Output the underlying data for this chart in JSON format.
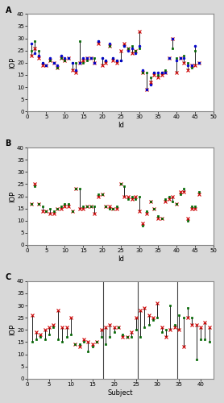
{
  "panel_A": {
    "title": "A",
    "xlabel": "Id",
    "ylabel": "IOP",
    "xlim": [
      0,
      50
    ],
    "ylim": [
      0,
      40
    ],
    "xticks": [
      0,
      5,
      10,
      15,
      20,
      25,
      30,
      35,
      40,
      45,
      50
    ],
    "yticks": [
      0,
      5,
      10,
      15,
      20,
      25,
      30,
      35,
      40
    ],
    "subjects": [
      1,
      2,
      3,
      4,
      5,
      6,
      7,
      8,
      9,
      10,
      11,
      12,
      13,
      14,
      15,
      16,
      17,
      18,
      19,
      20,
      21,
      22,
      23,
      24,
      25,
      26,
      27,
      28,
      29,
      30,
      31,
      32,
      33,
      34,
      35,
      36,
      37,
      38,
      39,
      40,
      41,
      42,
      43,
      44,
      45,
      46
    ],
    "v1": [
      23,
      26,
      22,
      19,
      19,
      21,
      20,
      18,
      22,
      21,
      22,
      17,
      16,
      20,
      21,
      22,
      22,
      20,
      28,
      19,
      20,
      27,
      21,
      20,
      25,
      28,
      26,
      24,
      25,
      33,
      16,
      9,
      12,
      15,
      14,
      15,
      16,
      22,
      30,
      16,
      22,
      20,
      17,
      19,
      19,
      20
    ],
    "v2": [
      25,
      29,
      25,
      20,
      19,
      21,
      20,
      18,
      22,
      21,
      22,
      20,
      20,
      29,
      20,
      21,
      22,
      22,
      29,
      22,
      21,
      27,
      22,
      21,
      21,
      27,
      26,
      27,
      25,
      26,
      16,
      16,
      14,
      16,
      15,
      16,
      17,
      22,
      26,
      22,
      22,
      23,
      20,
      18,
      25,
      20
    ],
    "v3": [
      28,
      24,
      23,
      20,
      19,
      22,
      20,
      19,
      23,
      22,
      22,
      20,
      17,
      20,
      22,
      22,
      22,
      20,
      29,
      22,
      21,
      28,
      22,
      21,
      21,
      27,
      25,
      26,
      24,
      27,
      17,
      9,
      11,
      16,
      16,
      16,
      16,
      22,
      30,
      21,
      22,
      22,
      19,
      19,
      27,
      20
    ]
  },
  "panel_B": {
    "title": "B",
    "xlabel": "Id",
    "ylabel": "IOP",
    "xlim": [
      0,
      50
    ],
    "ylim": [
      0,
      40
    ],
    "xticks": [
      0,
      5,
      10,
      15,
      20,
      25,
      30,
      35,
      40,
      45,
      50
    ],
    "yticks": [
      0,
      5,
      10,
      15,
      20,
      25,
      30,
      35,
      40
    ],
    "subjects": [
      1,
      2,
      3,
      4,
      5,
      6,
      7,
      8,
      9,
      10,
      11,
      12,
      13,
      14,
      15,
      16,
      17,
      18,
      19,
      20,
      21,
      22,
      23,
      24,
      25,
      26,
      27,
      28,
      29,
      30,
      31,
      32,
      33,
      34,
      35,
      36,
      37,
      38,
      39,
      40,
      41,
      42,
      43,
      44,
      45,
      46
    ],
    "v4": [
      17,
      25,
      17,
      14,
      14,
      13,
      13,
      15,
      15,
      16,
      16,
      14,
      23,
      15,
      15,
      16,
      16,
      13,
      20,
      21,
      16,
      16,
      15,
      15,
      25,
      20,
      20,
      19,
      20,
      14,
      9,
      13,
      18,
      15,
      11,
      11,
      18,
      19,
      20,
      17,
      22,
      22,
      11,
      15,
      15,
      21
    ],
    "v5": [
      17,
      24,
      17,
      16,
      14,
      15,
      14,
      15,
      16,
      17,
      17,
      14,
      23,
      23,
      16,
      16,
      16,
      16,
      21,
      21,
      16,
      15,
      15,
      16,
      25,
      24,
      19,
      20,
      19,
      20,
      8,
      14,
      18,
      15,
      12,
      11,
      19,
      20,
      18,
      17,
      21,
      23,
      10,
      16,
      16,
      22
    ]
  },
  "panel_C": {
    "title": "C",
    "xlabel": "Subject",
    "ylabel": "IOP",
    "xlim": [
      0,
      43
    ],
    "ylim": [
      0,
      40
    ],
    "xticks": [
      0,
      5,
      10,
      15,
      20,
      25,
      30,
      35,
      40
    ],
    "yticks": [
      0,
      5,
      10,
      15,
      20,
      25,
      30,
      35,
      40
    ],
    "vlines": [
      17.5,
      25.5,
      34.5
    ],
    "subjects": [
      1,
      2,
      3,
      4,
      5,
      6,
      7,
      8,
      9,
      10,
      11,
      12,
      13,
      14,
      15,
      16,
      17,
      18,
      19,
      20,
      21,
      22,
      23,
      24,
      25,
      26,
      27,
      28,
      29,
      30,
      31,
      32,
      33,
      34,
      35,
      36,
      37,
      38,
      39,
      40,
      41,
      42
    ],
    "pre": [
      26,
      19,
      18,
      20,
      21,
      22,
      28,
      21,
      21,
      25,
      14,
      13,
      16,
      15,
      14,
      15,
      20,
      21,
      22,
      21,
      21,
      17,
      17,
      19,
      25,
      28,
      29,
      26,
      25,
      31,
      21,
      17,
      20,
      21,
      20,
      13,
      25,
      22,
      22,
      21,
      23,
      21
    ],
    "post": [
      15,
      16,
      17,
      16,
      18,
      21,
      16,
      15,
      17,
      18,
      14,
      14,
      15,
      11,
      13,
      15,
      17,
      14,
      17,
      19,
      21,
      18,
      17,
      17,
      20,
      17,
      21,
      22,
      24,
      25,
      19,
      20,
      30,
      22,
      26,
      25,
      29,
      25,
      8,
      16,
      16,
      15
    ]
  },
  "marker_x": {
    "marker": "x",
    "color": "#cc0000",
    "ms": 2.5,
    "mew": 0.8
  },
  "marker_sq": {
    "marker": "s",
    "color": "#006600",
    "ms": 2.0,
    "mew": 0.5
  },
  "marker_o": {
    "marker": "o",
    "color": "#0000cc",
    "ms": 2.0,
    "mew": 0.5
  },
  "line_color": "#222222",
  "line_lw": 0.7,
  "fig_bg": "#d8d8d8",
  "plot_bg": "#ffffff",
  "spine_color": "#888888",
  "vline_color": "#444444"
}
